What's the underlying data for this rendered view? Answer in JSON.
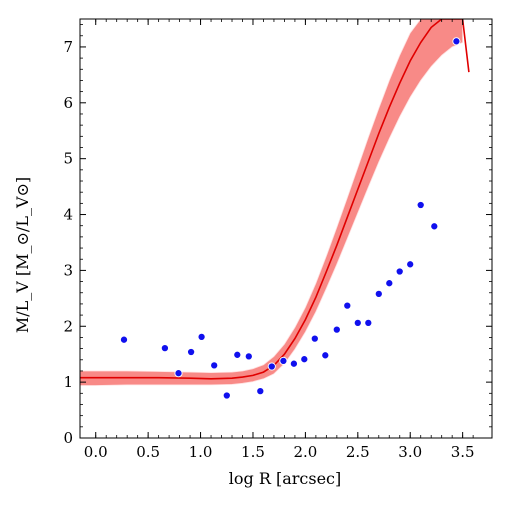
{
  "chart_data": {
    "type": "scatter",
    "xlabel": "log R [arcsec]",
    "ylabel": "M/L_V [M_⊙/L_V⊙]",
    "xlim": [
      -0.15,
      3.78
    ],
    "ylim": [
      0,
      7.5
    ],
    "x_ticks": [
      0.0,
      0.5,
      1.0,
      1.5,
      2.0,
      2.5,
      3.0,
      3.5
    ],
    "x_tick_labels": [
      "0.0",
      "0.5",
      "1.0",
      "1.5",
      "2.0",
      "2.5",
      "3.0",
      "3.5"
    ],
    "y_ticks": [
      0,
      1,
      2,
      3,
      4,
      5,
      6,
      7
    ],
    "y_tick_labels": [
      "0",
      "1",
      "2",
      "3",
      "4",
      "5",
      "6",
      "7"
    ],
    "grid": false,
    "legend": "none",
    "colors": {
      "band": "#f88a87",
      "band_edge": "#ffe0e0",
      "line": "#e00000",
      "points": "#1010ee"
    },
    "series": [
      {
        "kind": "line",
        "x": [
          -0.15,
          0.0,
          0.3,
          0.6,
          0.9,
          1.1,
          1.3,
          1.4,
          1.5,
          1.6,
          1.7,
          1.8,
          1.9,
          2.0,
          2.1,
          2.2,
          2.3,
          2.4,
          2.5,
          2.6,
          2.7,
          2.8,
          2.9,
          3.0,
          3.1,
          3.2,
          3.3,
          3.5,
          3.56
        ],
        "y": [
          1.08,
          1.08,
          1.08,
          1.08,
          1.07,
          1.06,
          1.07,
          1.09,
          1.12,
          1.18,
          1.3,
          1.5,
          1.78,
          2.12,
          2.52,
          2.98,
          3.45,
          3.95,
          4.45,
          4.95,
          5.45,
          5.92,
          6.35,
          6.75,
          7.08,
          7.35,
          7.5,
          7.5,
          6.55
        ]
      },
      {
        "kind": "band",
        "x": [
          -0.15,
          0.0,
          0.3,
          0.6,
          0.9,
          1.1,
          1.3,
          1.4,
          1.5,
          1.6,
          1.7,
          1.8,
          1.9,
          2.0,
          2.1,
          2.2,
          2.3,
          2.4,
          2.5,
          2.6,
          2.7,
          2.8,
          2.9,
          3.0,
          3.1,
          3.2,
          3.3,
          3.4,
          3.5
        ],
        "upper": [
          1.2,
          1.2,
          1.2,
          1.19,
          1.18,
          1.17,
          1.18,
          1.2,
          1.24,
          1.31,
          1.46,
          1.68,
          1.98,
          2.34,
          2.77,
          3.26,
          3.77,
          4.3,
          4.84,
          5.38,
          5.9,
          6.4,
          6.85,
          7.25,
          7.5,
          7.5,
          7.5,
          7.5,
          7.5
        ],
        "lower": [
          0.94,
          0.94,
          0.95,
          0.95,
          0.95,
          0.95,
          0.96,
          0.98,
          1.01,
          1.06,
          1.15,
          1.33,
          1.59,
          1.9,
          2.26,
          2.68,
          3.11,
          3.57,
          4.03,
          4.49,
          4.94,
          5.36,
          5.75,
          6.1,
          6.4,
          6.65,
          6.85,
          7.0,
          7.08
        ]
      },
      {
        "kind": "points",
        "x": [
          0.27,
          0.66,
          0.79,
          0.91,
          1.01,
          1.13,
          1.25,
          1.35,
          1.46,
          1.57,
          1.68,
          1.79,
          1.89,
          1.99,
          2.09,
          2.19,
          2.3,
          2.4,
          2.5,
          2.6,
          2.7,
          2.8,
          2.9,
          3.0,
          3.1,
          3.23,
          3.44
        ],
        "y": [
          1.76,
          1.61,
          1.16,
          1.54,
          1.81,
          1.3,
          0.76,
          1.49,
          1.46,
          0.84,
          1.28,
          1.38,
          1.33,
          1.41,
          1.78,
          1.48,
          1.94,
          2.37,
          2.06,
          2.06,
          2.58,
          2.77,
          2.98,
          3.11,
          4.17,
          3.79,
          7.1
        ]
      }
    ]
  }
}
